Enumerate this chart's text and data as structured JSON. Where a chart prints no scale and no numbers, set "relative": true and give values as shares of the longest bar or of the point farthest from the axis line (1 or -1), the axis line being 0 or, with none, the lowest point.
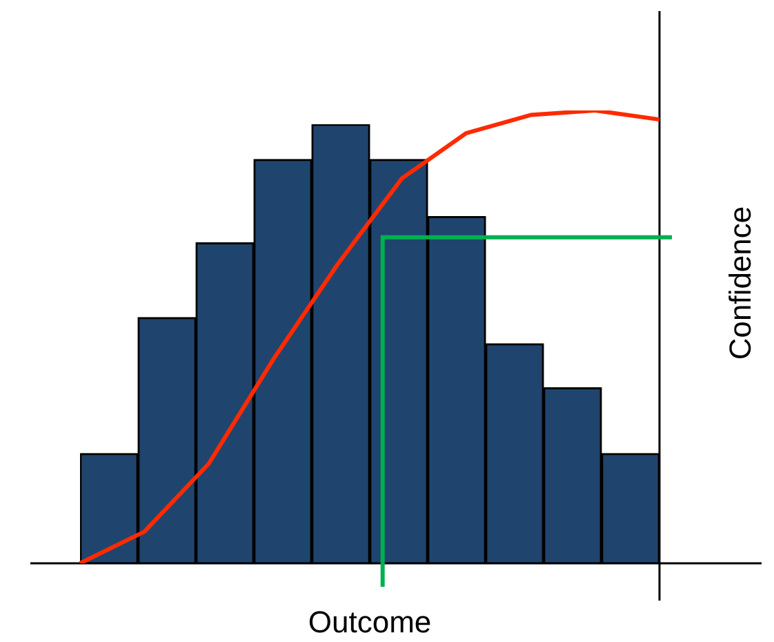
{
  "chart_data": [
    {
      "type": "bar",
      "relative": true,
      "xlabel": "Outcome",
      "categories": [
        null,
        null,
        null,
        null,
        null,
        null,
        null,
        null,
        null,
        null
      ],
      "color": "#1f456e",
      "values": [
        0.25,
        0.56,
        0.73,
        0.92,
        1,
        0.92,
        0.79,
        0.5,
        0.4,
        0.25
      ]
    },
    {
      "type": "line",
      "relative": true,
      "ylabel": "Confidence",
      "categories": [
        null,
        null,
        null,
        null,
        null,
        null,
        null,
        null,
        null,
        null
      ],
      "color": "#ff2a00",
      "marker": "none",
      "values": [
        0,
        0.07,
        0.22,
        0.45,
        0.66,
        0.85,
        0.95,
        0.99,
        1,
        0.98
      ],
      "ref_lines": [
        {
          "axis": "y",
          "value": 0.72,
          "color": "#00b050"
        }
      ]
    }
  ]
}
